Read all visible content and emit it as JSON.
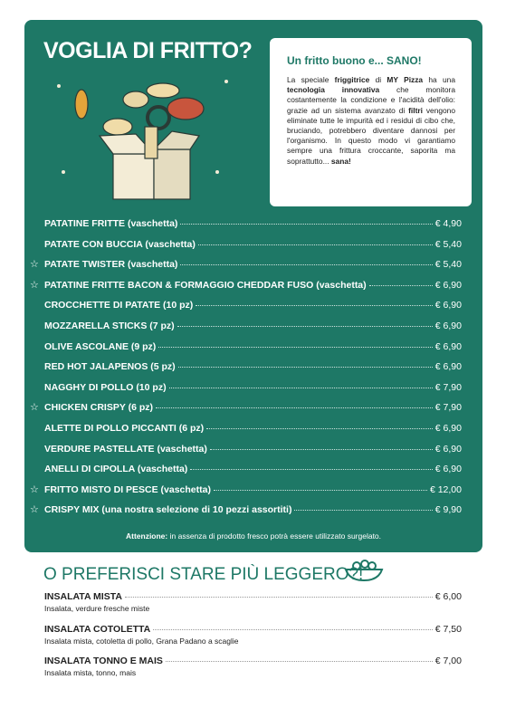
{
  "header": {
    "title": "VOGLIA DI FRITTO?"
  },
  "info_box": {
    "title": "Un fritto buono e... SANO!",
    "body": [
      {
        "text": "La speciale ",
        "bold": false
      },
      {
        "text": "friggitrice",
        "bold": true
      },
      {
        "text": " di ",
        "bold": false
      },
      {
        "text": "MY Pizza",
        "bold": true
      },
      {
        "text": " ha una ",
        "bold": false
      },
      {
        "text": "tecnologia innovativa",
        "bold": true
      },
      {
        "text": " che monitora costantemente la condizione e l'acidità dell'olio: grazie ad un sistema avanzato di ",
        "bold": false
      },
      {
        "text": "filtri",
        "bold": true
      },
      {
        "text": " vengono eliminate tutte le impurità ed i residui di cibo che, bruciando, potrebbero diventare dannosi per l'organismo. In questo modo vi garantiamo sempre una frittura croccante, saporita ma soprattutto... ",
        "bold": false
      },
      {
        "text": "sana!",
        "bold": true
      }
    ]
  },
  "fried_items": [
    {
      "name": "PATATINE FRITTE (vaschetta)",
      "price": "€ 4,90",
      "starred": false
    },
    {
      "name": "PATATE CON BUCCIA (vaschetta)",
      "price": "€ 5,40",
      "starred": false
    },
    {
      "name": "PATATE TWISTER (vaschetta)",
      "price": "€ 5,40",
      "starred": true
    },
    {
      "name": "PATATINE FRITTE BACON & FORMAGGIO CHEDDAR FUSO (vaschetta)",
      "price": "€ 6,90",
      "starred": true
    },
    {
      "name": "CROCCHETTE DI PATATE (10 pz)",
      "price": "€ 6,90",
      "starred": false
    },
    {
      "name": "MOZZARELLA STICKS (7 pz)",
      "price": "€ 6,90",
      "starred": false
    },
    {
      "name": "OLIVE ASCOLANE (9 pz)",
      "price": "€ 6,90",
      "starred": false
    },
    {
      "name": "RED HOT JALAPENOS (5 pz)",
      "price": "€ 6,90",
      "starred": false
    },
    {
      "name": "NAGGHY DI POLLO (10 pz)",
      "price": "€ 7,90",
      "starred": false
    },
    {
      "name": "CHICKEN CRISPY (6 pz)",
      "price": "€ 7,90",
      "starred": true
    },
    {
      "name": "ALETTE DI POLLO PICCANTI (6 pz)",
      "price": "€ 6,90",
      "starred": false
    },
    {
      "name": "VERDURE PASTELLATE (vaschetta)",
      "price": "€ 6,90",
      "starred": false
    },
    {
      "name": "ANELLI DI CIPOLLA (vaschetta)",
      "price": "€ 6,90",
      "starred": false
    },
    {
      "name": "FRITTO MISTO DI PESCE (vaschetta)",
      "price": "€ 12,00",
      "starred": true
    },
    {
      "name": "CRISPY MIX (una nostra selezione di 10 pezzi assortiti)",
      "price": "€ 9,90",
      "starred": true
    }
  ],
  "notice": [
    {
      "text": "Attenzione:",
      "bold": true
    },
    {
      "text": " in assenza di prodotto fresco potrà essere utilizzato surgelato.",
      "bold": false
    }
  ],
  "salads": {
    "title": "O PREFERISCI STARE PIÙ LEGGERO?!",
    "items": [
      {
        "name": "INSALATA MISTA",
        "description": "Insalata, verdure fresche miste",
        "price": "€ 6,00"
      },
      {
        "name": "INSALATA COTOLETTA",
        "description": "Insalata mista, cotoletta di pollo, Grana Padano a scaglie",
        "price": "€ 7,50"
      },
      {
        "name": "INSALATA TONNO E MAIS",
        "description": "Insalata mista, tonno, mais",
        "price": "€ 7,00"
      }
    ]
  }
}
